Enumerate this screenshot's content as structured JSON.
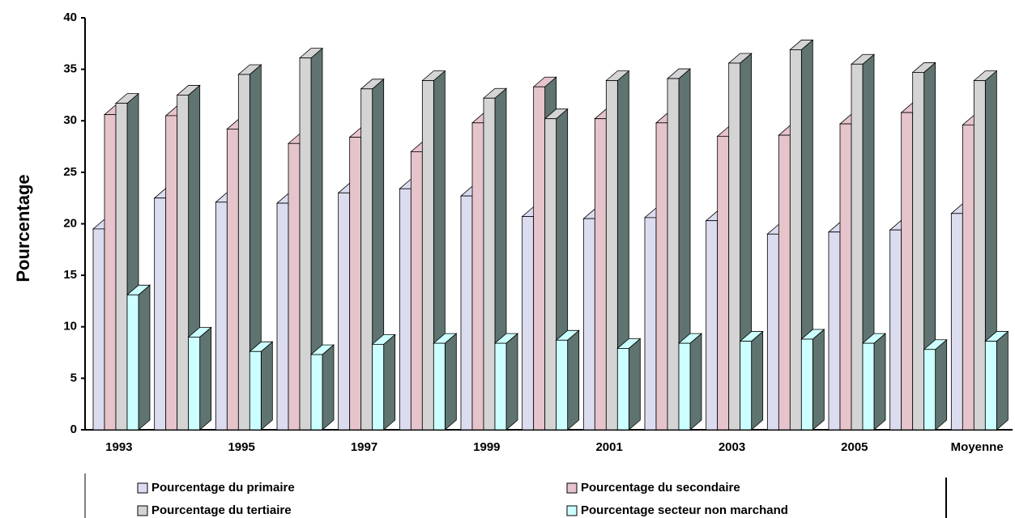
{
  "chart_data": {
    "type": "bar3d",
    "y_label": "Pourcentage",
    "categories": [
      "1993",
      null,
      "1995",
      null,
      "1997",
      null,
      "1999",
      null,
      "2001",
      null,
      "2003",
      null,
      "2005",
      null,
      "Moyenne"
    ],
    "series": [
      {
        "name": "Pourcentage du primaire",
        "color": "#dcdcf0",
        "values": [
          19.5,
          22.5,
          22.1,
          22,
          23,
          23.4,
          22.7,
          20.7,
          20.5,
          20.6,
          20.3,
          19,
          19.2,
          19.4,
          21
        ]
      },
      {
        "name": "Pourcentage du secondaire",
        "color": "#e6c4cc",
        "values": [
          30.6,
          30.5,
          29.2,
          27.8,
          28.4,
          27,
          29.8,
          33.3,
          30.2,
          29.8,
          28.5,
          28.6,
          29.7,
          30.8,
          29.6
        ]
      },
      {
        "name": "Pourcentage du tertiaire",
        "color": "#d4d4d4",
        "values": [
          31.7,
          32.5,
          34.5,
          36.1,
          33.1,
          33.9,
          32.2,
          30.2,
          33.9,
          34.1,
          35.6,
          36.9,
          35.5,
          34.7,
          33.9
        ]
      },
      {
        "name": "Pourcentage secteur non marchand",
        "color": "#ccffff",
        "values": [
          13.1,
          9,
          7.6,
          7.3,
          8.3,
          8.4,
          8.4,
          8.7,
          7.9,
          8.4,
          8.6,
          8.8,
          8.4,
          7.8,
          8.6
        ]
      }
    ],
    "ylim": [
      0,
      40
    ],
    "yticks": [
      0,
      5,
      10,
      15,
      20,
      25,
      30,
      35,
      40
    ],
    "grid": false,
    "legend": "bottom"
  }
}
